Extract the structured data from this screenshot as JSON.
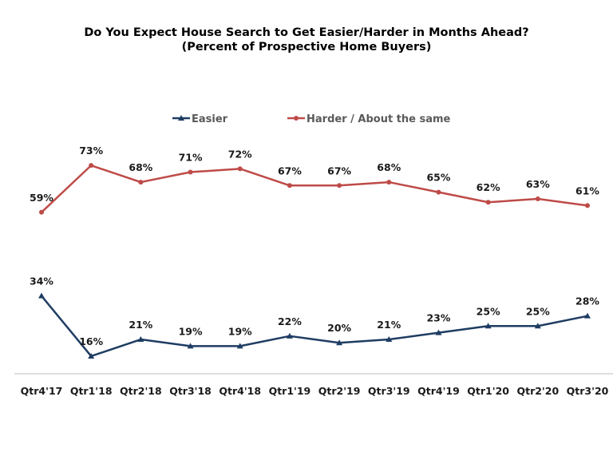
{
  "chart_data": {
    "type": "line",
    "title": "Do You Expect House Search to Get Easier/Harder in Months Ahead?",
    "subtitle": "(Percent of Prospective Home Buyers)",
    "categories": [
      "Qtr4'17",
      "Qtr1'18",
      "Qtr2'18",
      "Qtr3'18",
      "Qtr4'18",
      "Qtr1'19",
      "Qtr2'19",
      "Qtr3'19",
      "Qtr4'19",
      "Qtr1'20",
      "Qtr2'20",
      "Qtr3'20"
    ],
    "series": [
      {
        "name": "Easier",
        "color": "#1f3d63",
        "marker": "triangle",
        "values": [
          34,
          16,
          21,
          19,
          19,
          22,
          20,
          21,
          23,
          25,
          25,
          28
        ],
        "labels": [
          "34%",
          "16%",
          "21%",
          "19%",
          "19%",
          "22%",
          "20%",
          "21%",
          "23%",
          "25%",
          "25%",
          "28%"
        ]
      },
      {
        "name": "Harder / About the same",
        "color": "#be4b48",
        "marker": "circle",
        "values": [
          59,
          73,
          68,
          71,
          72,
          67,
          67,
          68,
          65,
          62,
          63,
          61
        ],
        "labels": [
          "59%",
          "73%",
          "68%",
          "71%",
          "72%",
          "67%",
          "67%",
          "68%",
          "65%",
          "62%",
          "63%",
          "61%"
        ]
      }
    ],
    "ylim": [
      0,
      100
    ],
    "grid": false,
    "legend": "top-center",
    "xlabel": "",
    "ylabel": ""
  }
}
